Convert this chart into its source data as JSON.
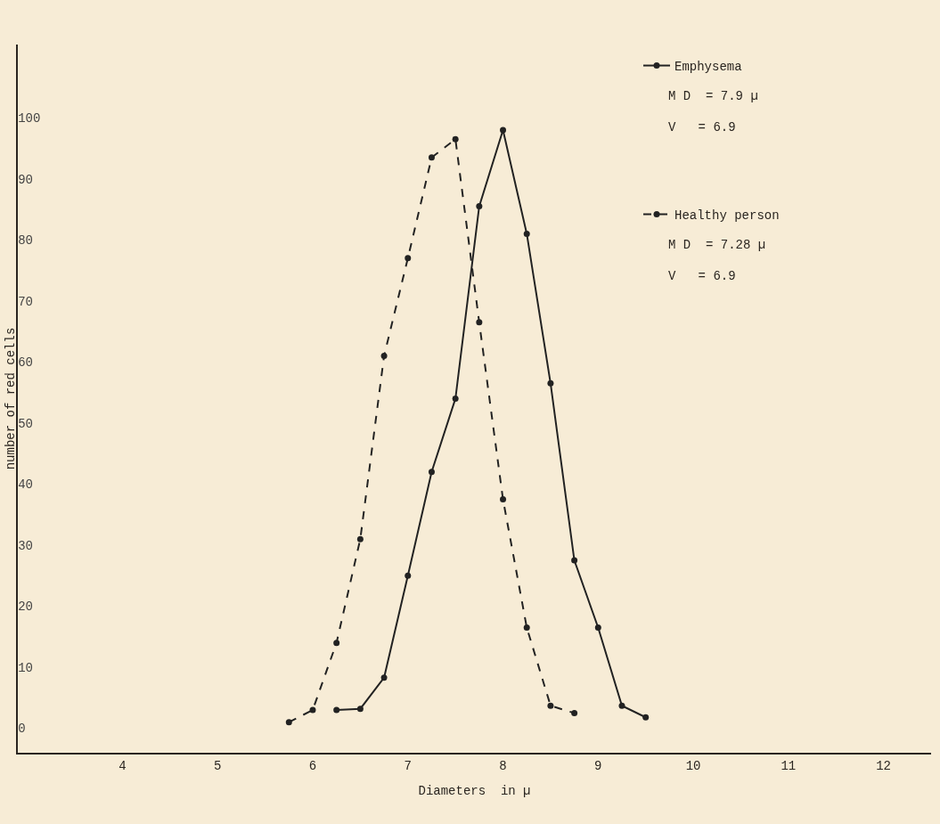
{
  "chart_data": {
    "type": "line",
    "xlabel": "Diameters  in µ",
    "ylabel": "number of red cells",
    "xlim": [
      2.9,
      12.5
    ],
    "ylim": [
      -4,
      112
    ],
    "xticks": [
      4,
      5,
      6,
      7,
      8,
      9,
      10,
      11,
      12
    ],
    "yticks": [
      0,
      10,
      20,
      30,
      40,
      50,
      60,
      70,
      80,
      90,
      100
    ],
    "marker": "circle",
    "legend": "top right",
    "grid": false,
    "annotations": [
      "M D  = 7.9 µ",
      "V   = 6.9",
      "M D  = 7.28 µ",
      "V   = 6.9"
    ],
    "series": [
      {
        "name": "Emphysema",
        "color": "#222222",
        "line_style": "solid",
        "x": [
          6.25,
          6.5,
          6.75,
          7.0,
          7.25,
          7.5,
          7.75,
          8.0,
          8.25,
          8.5,
          8.75,
          9.0,
          9.25,
          9.5
        ],
        "values": [
          3,
          3.2,
          8.3,
          25,
          42,
          54,
          85.5,
          98,
          81,
          56.5,
          27.5,
          16.5,
          3.7,
          1.8
        ]
      },
      {
        "name": "Healthy person",
        "color": "#222222",
        "line_style": "dashed",
        "x": [
          5.75,
          6.0,
          6.25,
          6.5,
          6.75,
          7.0,
          7.25,
          7.5,
          7.75,
          8.0,
          8.25,
          8.5,
          8.75
        ],
        "values": [
          1,
          3,
          14,
          31,
          61,
          77,
          93.5,
          96.5,
          66.5,
          37.5,
          16.5,
          3.7,
          2.5
        ]
      }
    ]
  }
}
